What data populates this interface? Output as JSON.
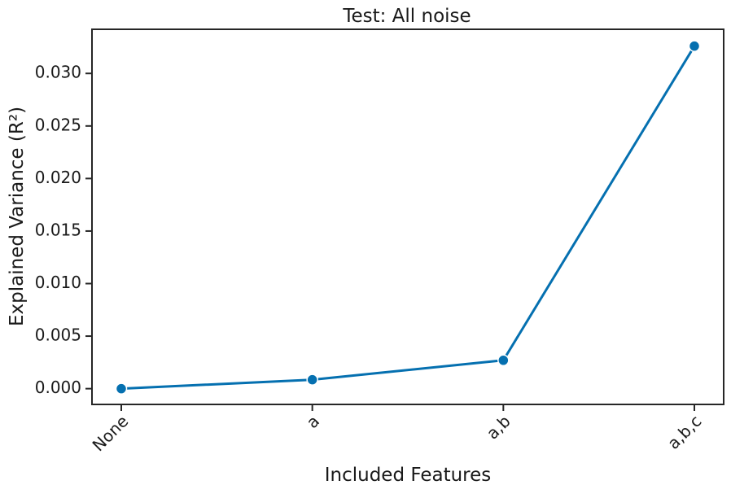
{
  "chart_data": {
    "type": "line",
    "title": "Test: All noise",
    "xlabel": "Included Features",
    "ylabel": "Explained Variance (R²)",
    "categories": [
      "None",
      "a",
      "a,b",
      "a,b,c"
    ],
    "series": [
      {
        "values": [
          0.0,
          0.00085,
          0.0027,
          0.0326
        ]
      }
    ],
    "ylim": [
      -0.0015,
      0.0342
    ],
    "yticks": [
      0.0,
      0.005,
      0.01,
      0.015,
      0.02,
      0.025,
      0.03
    ],
    "ytick_labels": [
      "0.000",
      "0.005",
      "0.010",
      "0.015",
      "0.020",
      "0.025",
      "0.030"
    ],
    "x_tick_rotation_deg": 45,
    "grid": false,
    "line_color": "#0570b0",
    "marker": "circle"
  }
}
